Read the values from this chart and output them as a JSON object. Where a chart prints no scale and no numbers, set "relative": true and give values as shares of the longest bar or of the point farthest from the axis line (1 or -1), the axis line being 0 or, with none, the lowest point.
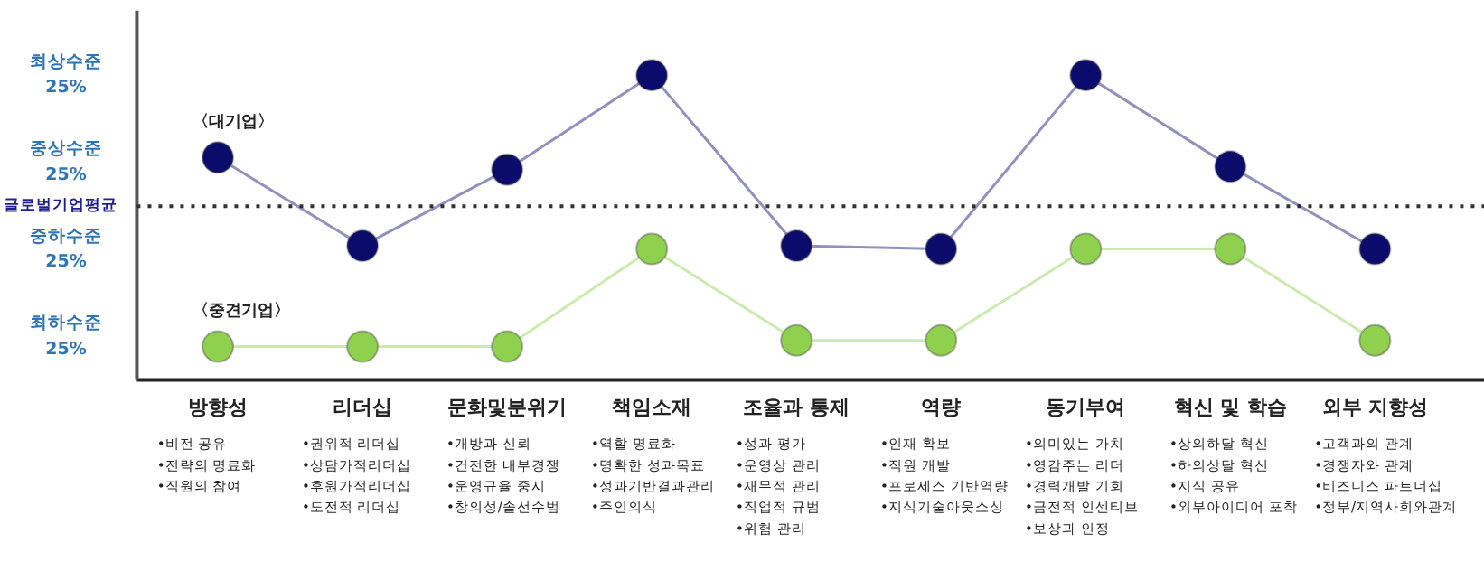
{
  "chart_data": {
    "type": "line",
    "relative": true,
    "categories": [
      "방향성",
      "리더십",
      "문화및분위기",
      "책임소재",
      "조율과 통제",
      "역량",
      "동기부여",
      "혁신 및 학습",
      "외부 지향성"
    ],
    "series": [
      {
        "name": "〈대기업〉",
        "color": "#0b0b6b",
        "values": [
          0.73,
          0.44,
          0.69,
          1,
          0.44,
          0.43,
          1,
          0.7,
          0.43
        ]
      },
      {
        "name": "〈중견기업〉",
        "color": "#8fd14f",
        "values": [
          0.11,
          0.11,
          0.11,
          0.43,
          0.13,
          0.13,
          0.43,
          0.43,
          0.13
        ]
      }
    ],
    "marker": "circle",
    "ref_lines": [
      {
        "axis": "y",
        "value": 0.57,
        "label": "글로벌기업평균",
        "color": "#333333",
        "line_style": "dotted"
      }
    ],
    "annotations": [
      "최상수준\n25%",
      "중상수준\n25%",
      "중하수준\n25%",
      "최하수준\n25%",
      "•비전 공유\n•전략의 명료화\n•직원의 참여",
      "•권위적 리더십\n•상담가적리더십\n•후원가적리더십\n•도전적 리더십",
      "•개방과 신뢰\n•건전한 내부경쟁\n•운영규율 중시\n•창의성/솔선수범",
      "•역할 명료화\n•명확한 성과목표\n•성과기반결과관리\n•주인의식",
      "•성과 평가\n•운영상 관리\n•재무적 관리\n•직업적 규범\n•위험 관리",
      "•인재 확보\n•직원 개발\n•프로세스 기반역량\n•지식기술아웃소싱",
      "•의미있는 가치\n•영감주는 리더\n•경력개발 기회\n•금전적 인센티브\n•보상과 인정",
      "•상의하달 혁신\n•하의상달 혁신\n•지식 공유\n•외부아이디어 포착",
      "•고객과의 관계\n•경쟁자와 관계\n•비즈니스 파트너십\n•정부/지역사회와관계"
    ]
  }
}
